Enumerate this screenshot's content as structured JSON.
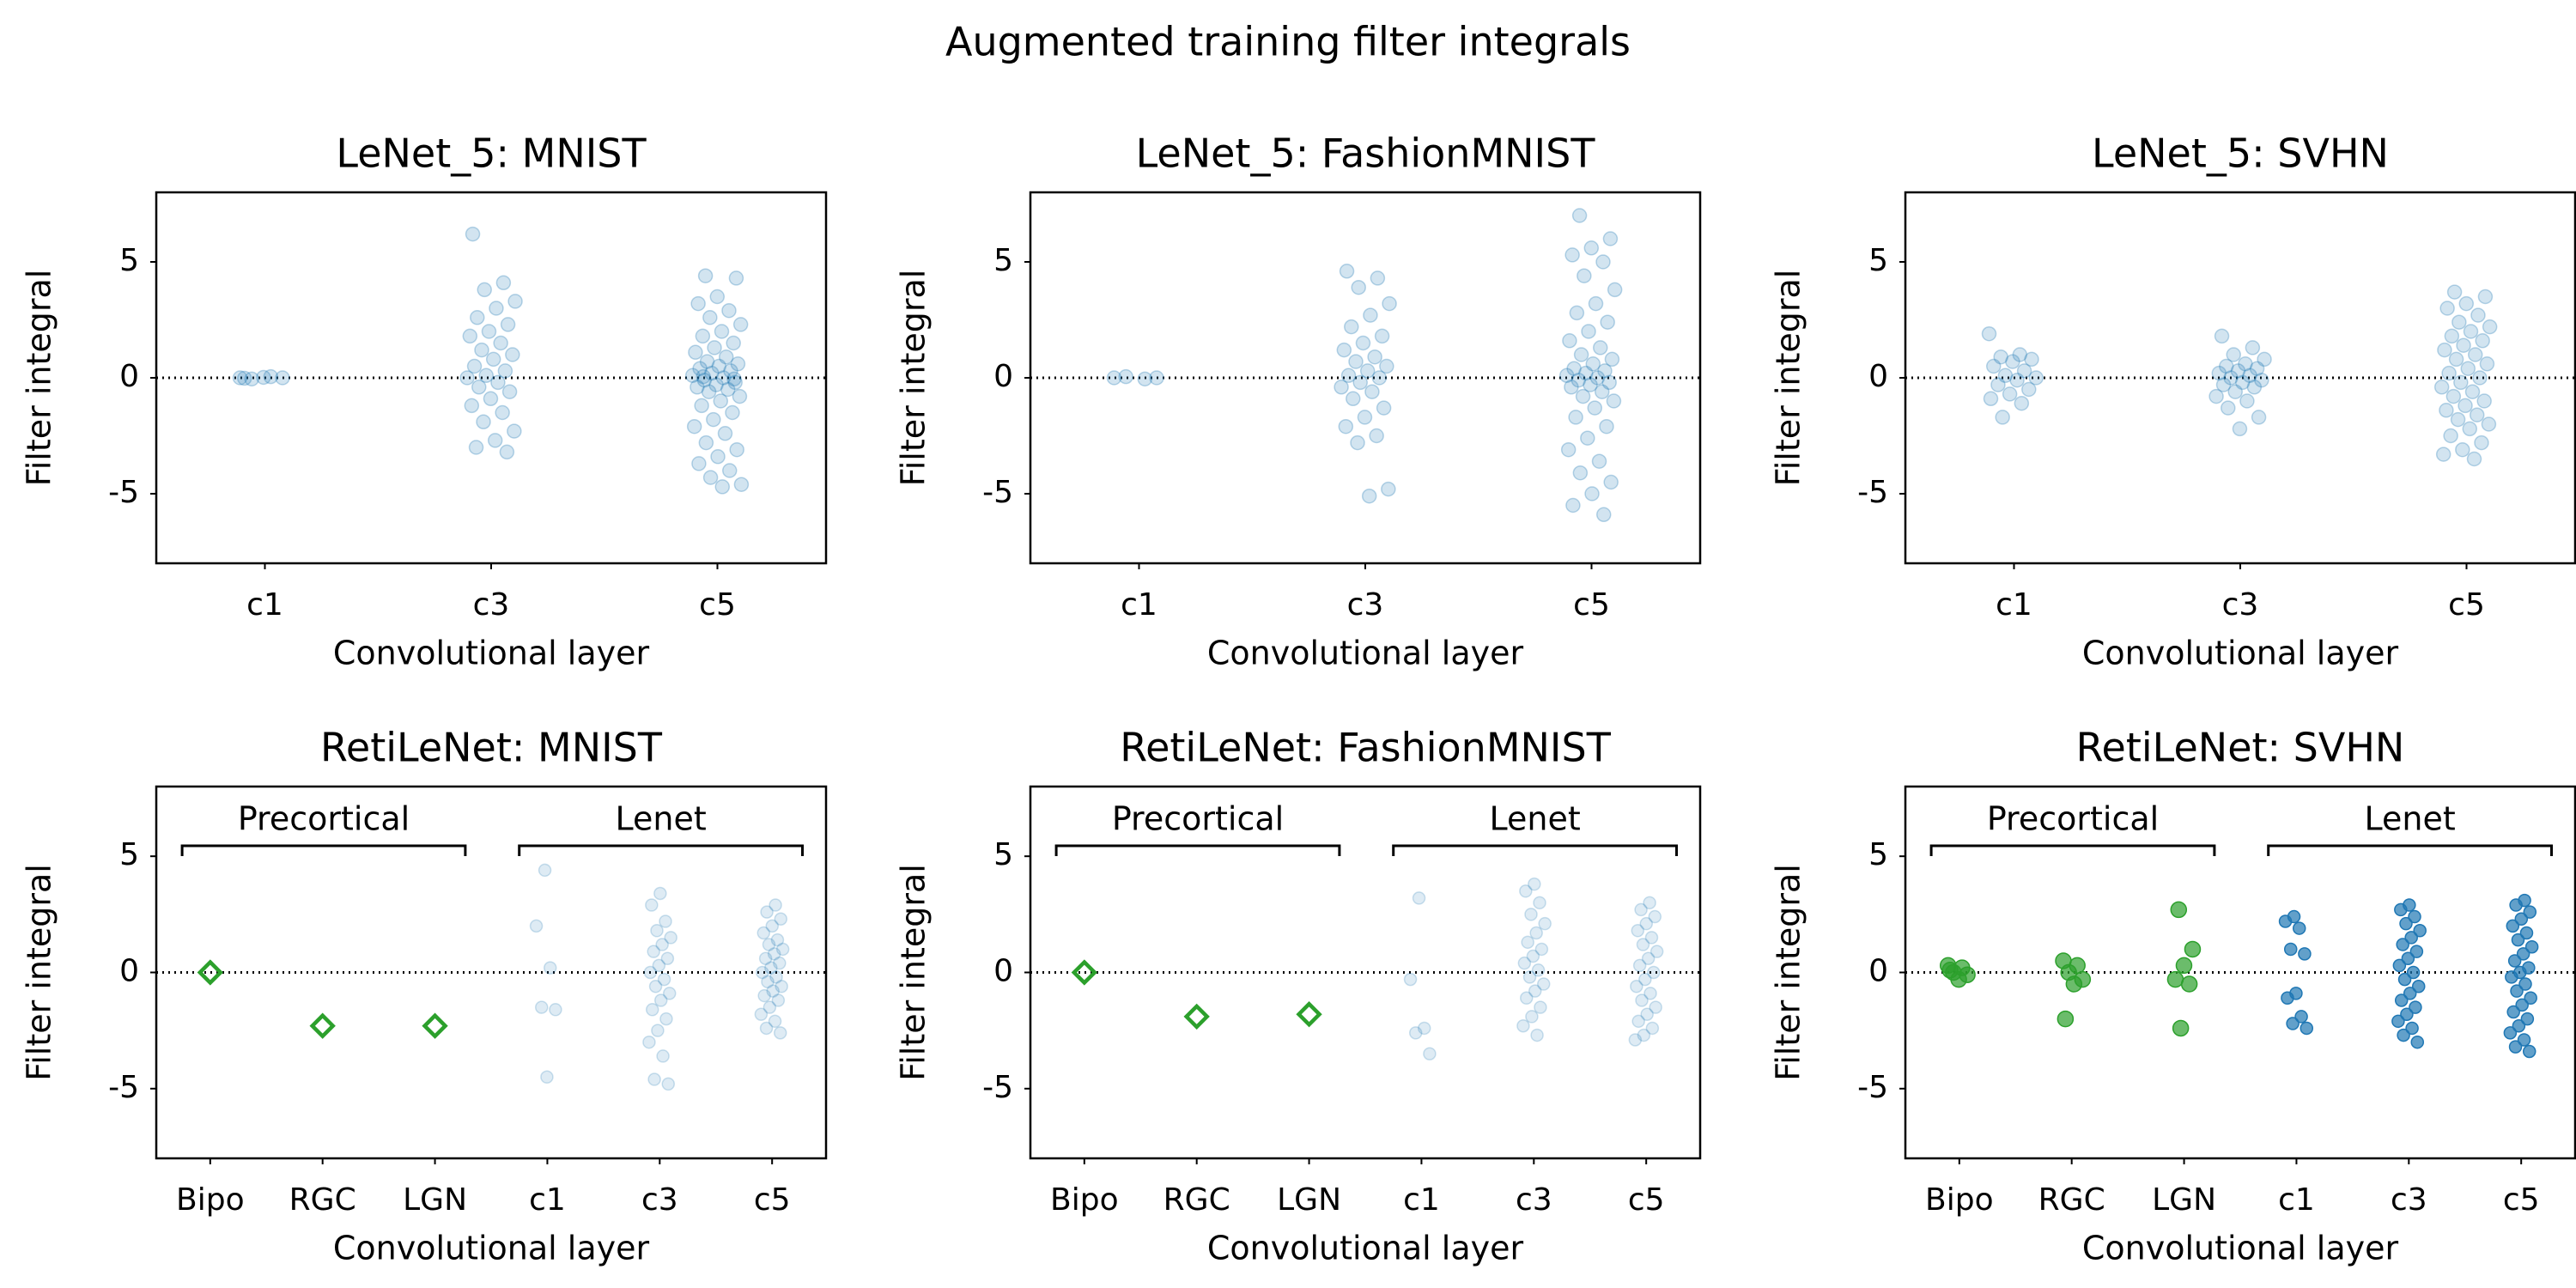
{
  "title": "Augmented training filter integrals",
  "chart_data": [
    {
      "type": "strip",
      "title": "LeNet_5: MNIST",
      "xlabel": "Convolutional layer",
      "ylabel": "Filter integral",
      "categories": [
        "c1",
        "c3",
        "c5"
      ],
      "colors": [
        "#1f77b4",
        "#1f77b4",
        "#1f77b4"
      ],
      "markers": [
        "circle",
        "circle",
        "circle"
      ],
      "opacity": [
        0.2,
        0.2,
        0.2
      ],
      "ylim": [
        -8,
        8
      ],
      "yticks": [
        -5,
        0,
        5
      ],
      "reference_line": 0,
      "values": [
        [
          0,
          0.05,
          -0.05,
          0,
          0.02,
          -0.02
        ],
        [
          6.2,
          4.1,
          3.8,
          3.3,
          3.0,
          2.6,
          2.3,
          2.0,
          1.8,
          1.5,
          1.2,
          1.0,
          0.8,
          0.5,
          0.3,
          0.1,
          0,
          -0.2,
          -0.4,
          -0.6,
          -0.9,
          -1.2,
          -1.5,
          -1.9,
          -2.3,
          -2.7,
          -3.0,
          -3.2
        ],
        [
          4.4,
          4.3,
          3.5,
          3.2,
          2.9,
          2.6,
          2.3,
          2.0,
          1.8,
          1.5,
          1.3,
          1.1,
          0.9,
          0.7,
          0.6,
          0.5,
          0.4,
          0.3,
          0.2,
          0.1,
          0,
          -0.1,
          -0.2,
          -0.3,
          -0.4,
          -0.5,
          -0.6,
          -0.8,
          -1.0,
          -1.2,
          -1.5,
          -1.8,
          -2.1,
          -2.4,
          -2.8,
          -3.1,
          -3.4,
          -3.7,
          -4.0,
          -4.3,
          -4.6,
          -4.7,
          0.05,
          -0.05
        ]
      ]
    },
    {
      "type": "strip",
      "title": "LeNet_5: FashionMNIST",
      "xlabel": "Convolutional layer",
      "ylabel": "Filter integral",
      "categories": [
        "c1",
        "c3",
        "c5"
      ],
      "colors": [
        "#1f77b4",
        "#1f77b4",
        "#1f77b4"
      ],
      "markers": [
        "circle",
        "circle",
        "circle"
      ],
      "opacity": [
        0.2,
        0.2,
        0.2
      ],
      "ylim": [
        -8,
        8
      ],
      "yticks": [
        -5,
        0,
        5
      ],
      "reference_line": 0,
      "values": [
        [
          0,
          -0.05,
          0.05,
          0
        ],
        [
          4.6,
          4.3,
          3.9,
          3.2,
          2.7,
          2.2,
          1.8,
          1.5,
          1.2,
          0.9,
          0.7,
          0.5,
          0.3,
          0.1,
          0,
          -0.2,
          -0.4,
          -0.6,
          -0.9,
          -1.3,
          -1.7,
          -2.1,
          -2.5,
          -2.8,
          -4.8,
          -5.1
        ],
        [
          7.0,
          6.0,
          5.6,
          5.3,
          5.0,
          4.4,
          3.8,
          3.2,
          2.8,
          2.4,
          2.0,
          1.6,
          1.3,
          1.0,
          0.8,
          0.6,
          0.4,
          0.3,
          0.2,
          0.1,
          0,
          -0.1,
          -0.2,
          -0.3,
          -0.4,
          -0.6,
          -0.8,
          -1.0,
          -1.3,
          -1.7,
          -2.1,
          -2.6,
          -3.1,
          -3.6,
          -4.1,
          -4.5,
          -5.0,
          -5.5,
          -5.9
        ]
      ]
    },
    {
      "type": "strip",
      "title": "LeNet_5: SVHN",
      "xlabel": "Convolutional layer",
      "ylabel": "Filter integral",
      "categories": [
        "c1",
        "c3",
        "c5"
      ],
      "colors": [
        "#1f77b4",
        "#1f77b4",
        "#1f77b4"
      ],
      "markers": [
        "circle",
        "circle",
        "circle"
      ],
      "opacity": [
        0.2,
        0.2,
        0.2
      ],
      "ylim": [
        -8,
        8
      ],
      "yticks": [
        -5,
        0,
        5
      ],
      "reference_line": 0,
      "values": [
        [
          1.9,
          1.0,
          0.9,
          0.8,
          0.7,
          0.5,
          0.3,
          0.1,
          0,
          -0.1,
          -0.3,
          -0.5,
          -0.7,
          -0.9,
          -1.1,
          -1.7
        ],
        [
          1.8,
          1.3,
          1.0,
          0.8,
          0.6,
          0.5,
          0.4,
          0.3,
          0.2,
          0.1,
          0,
          -0.1,
          -0.2,
          -0.3,
          -0.4,
          -0.6,
          -0.8,
          -1.0,
          -1.3,
          -1.7,
          -2.2
        ],
        [
          3.7,
          3.5,
          3.2,
          3.0,
          2.7,
          2.4,
          2.2,
          2.0,
          1.8,
          1.6,
          1.4,
          1.2,
          1.0,
          0.8,
          0.6,
          0.4,
          0.2,
          0,
          -0.2,
          -0.4,
          -0.6,
          -0.8,
          -1.0,
          -1.2,
          -1.4,
          -1.6,
          -1.8,
          -2.0,
          -2.2,
          -2.5,
          -2.8,
          -3.1,
          -3.3,
          -3.5
        ]
      ]
    },
    {
      "type": "strip",
      "title": "RetiLeNet: MNIST",
      "xlabel": "Convolutional layer",
      "ylabel": "Filter integral",
      "categories": [
        "Bipo",
        "RGC",
        "LGN",
        "c1",
        "c3",
        "c5"
      ],
      "colors": [
        "#2ca02c",
        "#2ca02c",
        "#2ca02c",
        "#1f77b4",
        "#1f77b4",
        "#1f77b4"
      ],
      "markers": [
        "diamond",
        "diamond",
        "diamond",
        "circle",
        "circle",
        "circle"
      ],
      "opacity": [
        1,
        1,
        1,
        0.15,
        0.15,
        0.15
      ],
      "ylim": [
        -8,
        8
      ],
      "yticks": [
        -5,
        0,
        5
      ],
      "reference_line": 0,
      "groups": [
        {
          "label": "Precortical",
          "from": "Bipo",
          "to": "LGN"
        },
        {
          "label": "Lenet",
          "from": "c1",
          "to": "c5"
        }
      ],
      "values": [
        [
          0
        ],
        [
          -2.3
        ],
        [
          -2.3
        ],
        [
          4.4,
          2.0,
          0.2,
          -1.5,
          -1.6,
          -4.5
        ],
        [
          3.4,
          2.9,
          2.2,
          1.8,
          1.5,
          1.2,
          0.9,
          0.6,
          0.3,
          0,
          -0.3,
          -0.6,
          -0.9,
          -1.2,
          -1.6,
          -2.0,
          -2.5,
          -3.0,
          -3.6,
          -4.6,
          -4.8
        ],
        [
          2.9,
          2.6,
          2.3,
          2.0,
          1.7,
          1.4,
          1.2,
          1.0,
          0.8,
          0.6,
          0.4,
          0.2,
          0,
          -0.2,
          -0.4,
          -0.6,
          -0.8,
          -1.0,
          -1.2,
          -1.5,
          -1.8,
          -2.1,
          -2.4,
          -2.6
        ]
      ]
    },
    {
      "type": "strip",
      "title": "RetiLeNet: FashionMNIST",
      "xlabel": "Convolutional layer",
      "ylabel": "Filter integral",
      "categories": [
        "Bipo",
        "RGC",
        "LGN",
        "c1",
        "c3",
        "c5"
      ],
      "colors": [
        "#2ca02c",
        "#2ca02c",
        "#2ca02c",
        "#1f77b4",
        "#1f77b4",
        "#1f77b4"
      ],
      "markers": [
        "diamond",
        "diamond",
        "diamond",
        "circle",
        "circle",
        "circle"
      ],
      "opacity": [
        1,
        1,
        1,
        0.15,
        0.15,
        0.15
      ],
      "ylim": [
        -8,
        8
      ],
      "yticks": [
        -5,
        0,
        5
      ],
      "reference_line": 0,
      "groups": [
        {
          "label": "Precortical",
          "from": "Bipo",
          "to": "LGN"
        },
        {
          "label": "Lenet",
          "from": "c1",
          "to": "c5"
        }
      ],
      "values": [
        [
          0
        ],
        [
          -1.9
        ],
        [
          -1.8
        ],
        [
          3.2,
          -0.3,
          -2.4,
          -2.6,
          -3.5
        ],
        [
          3.8,
          3.5,
          3.0,
          2.5,
          2.1,
          1.7,
          1.3,
          1.0,
          0.7,
          0.4,
          0.1,
          -0.2,
          -0.5,
          -0.8,
          -1.1,
          -1.5,
          -1.9,
          -2.3,
          -2.7
        ],
        [
          3.0,
          2.7,
          2.4,
          2.1,
          1.8,
          1.5,
          1.2,
          0.9,
          0.6,
          0.3,
          0,
          -0.3,
          -0.6,
          -0.9,
          -1.2,
          -1.5,
          -1.8,
          -2.1,
          -2.4,
          -2.7,
          -2.9
        ]
      ]
    },
    {
      "type": "strip",
      "title": "RetiLeNet: SVHN",
      "xlabel": "Convolutional layer",
      "ylabel": "Filter integral",
      "categories": [
        "Bipo",
        "RGC",
        "LGN",
        "c1",
        "c3",
        "c5"
      ],
      "colors": [
        "#2ca02c",
        "#2ca02c",
        "#2ca02c",
        "#1f77b4",
        "#1f77b4",
        "#1f77b4"
      ],
      "markers": [
        "circle",
        "circle",
        "circle",
        "circle",
        "circle",
        "circle"
      ],
      "opacity": [
        0.7,
        0.7,
        0.7,
        0.7,
        0.7,
        0.7
      ],
      "ylim": [
        -8,
        8
      ],
      "yticks": [
        -5,
        0,
        5
      ],
      "reference_line": 0,
      "groups": [
        {
          "label": "Precortical",
          "from": "Bipo",
          "to": "LGN"
        },
        {
          "label": "Lenet",
          "from": "c1",
          "to": "c5"
        }
      ],
      "values": [
        [
          0.3,
          0.2,
          0,
          -0.1,
          -0.3,
          0.1
        ],
        [
          0.5,
          0.3,
          0,
          -0.3,
          -0.5,
          -2.0
        ],
        [
          2.7,
          1.0,
          0.3,
          -0.3,
          -0.5,
          -2.4
        ],
        [
          2.4,
          2.2,
          1.9,
          1.0,
          0.8,
          -0.9,
          -1.1,
          -1.9,
          -2.2,
          -2.4
        ],
        [
          2.9,
          2.7,
          2.4,
          2.1,
          1.8,
          1.5,
          1.2,
          0.9,
          0.6,
          0.3,
          0,
          -0.3,
          -0.6,
          -0.9,
          -1.2,
          -1.5,
          -1.8,
          -2.1,
          -2.4,
          -2.7,
          -3.0
        ],
        [
          3.1,
          2.9,
          2.6,
          2.3,
          2.0,
          1.7,
          1.4,
          1.1,
          0.8,
          0.5,
          0.2,
          0,
          -0.2,
          -0.5,
          -0.8,
          -1.1,
          -1.4,
          -1.7,
          -2.0,
          -2.3,
          -2.6,
          -2.9,
          -3.2,
          -3.4
        ]
      ]
    }
  ]
}
